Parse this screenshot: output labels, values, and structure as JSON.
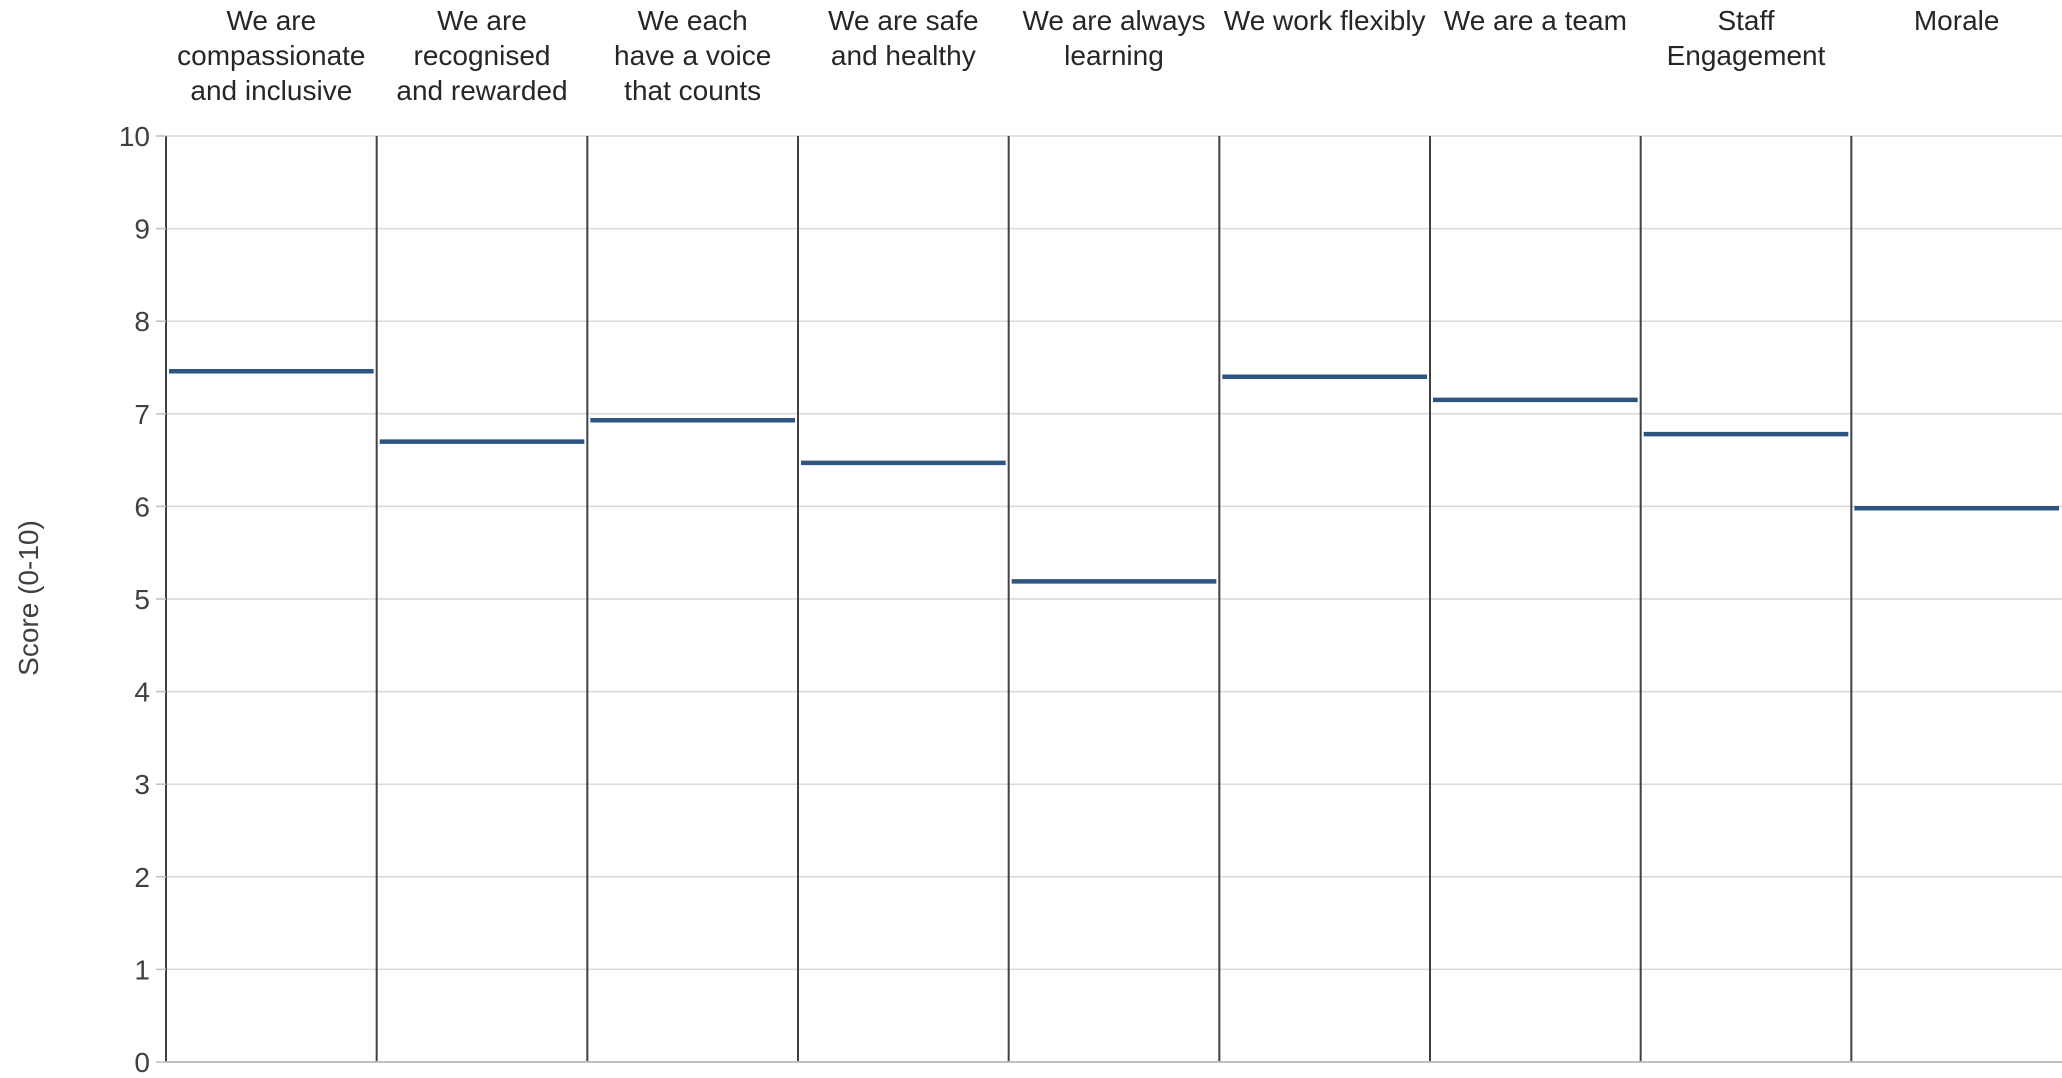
{
  "chart_data": {
    "type": "bar",
    "style": "level-marker",
    "categories": [
      [
        "We are",
        "compassionate",
        "and inclusive"
      ],
      [
        "We are",
        "recognised",
        "and rewarded"
      ],
      [
        "We each",
        "have a voice",
        "that counts"
      ],
      [
        "We are safe",
        "and healthy"
      ],
      [
        "We are always",
        "learning"
      ],
      [
        "We work flexibly"
      ],
      [
        "We are a team"
      ],
      [
        "Staff",
        "Engagement"
      ],
      [
        "Morale"
      ]
    ],
    "values": [
      7.46,
      6.7,
      6.93,
      6.47,
      5.19,
      7.4,
      7.15,
      6.78,
      5.98
    ],
    "ylabel": "Score (0-10)",
    "xlabel": "",
    "title": "",
    "ylim": [
      0,
      10
    ],
    "yticks": [
      0,
      1,
      2,
      3,
      4,
      5,
      6,
      7,
      8,
      9,
      10
    ],
    "grid": true,
    "legend": "none",
    "colors": {
      "marker": "#2e5480",
      "grid": "#d9d9d9",
      "divider": "#404040",
      "axis": "#bfbfbf"
    }
  }
}
